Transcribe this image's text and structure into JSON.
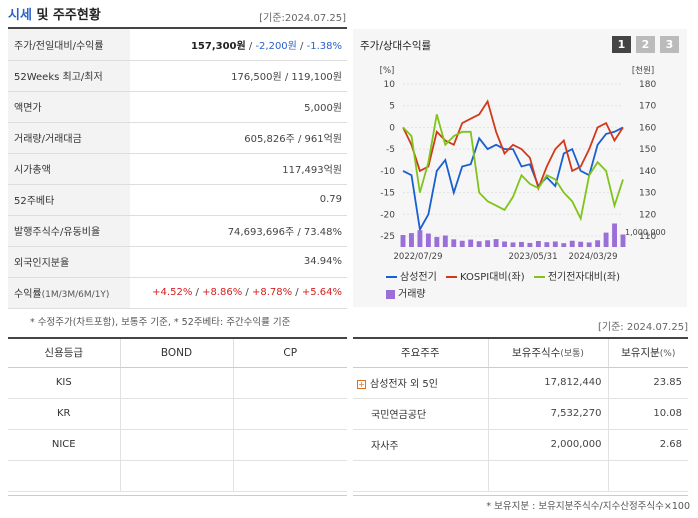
{
  "header": {
    "title_part1": "시세",
    "title_part2": " 및 주주현황",
    "base_date": "[기준:2024.07.25]"
  },
  "info_rows": {
    "price": {
      "label": "주가/전일대비/수익률",
      "price": "157,300원",
      "sep1": " / ",
      "change": "-2,200원",
      "sep2": " / ",
      "rate": "-1.38%"
    },
    "weeks52": {
      "label": "52Weeks 최고/최저",
      "value": "176,500원 / 119,100원"
    },
    "par": {
      "label": "액면가",
      "value": "5,000원"
    },
    "volume": {
      "label": "거래량/거래대금",
      "value": "605,826주 / 961억원"
    },
    "market_cap": {
      "label": "시가총액",
      "value": "117,493억원"
    },
    "beta": {
      "label": "52주베타",
      "value": "0.79"
    },
    "shares": {
      "label": "발행주식수/유동비율",
      "value": "74,693,696주 / 73.48%"
    },
    "foreign": {
      "label": "외국인지분율",
      "value": "34.94%"
    },
    "returns": {
      "label": "수익률",
      "label_sub": "(1M/3M/6M/1Y)",
      "r1": "+4.52%",
      "r2": "+8.86%",
      "r3": "+8.78%",
      "r4": "+5.64%",
      "sep": " / "
    }
  },
  "note1": "* 수정주가(차트포함), 보통주 기준, * 52주베타: 주간수익률 기준",
  "chart": {
    "title": "주가/상대수익률",
    "tabs": [
      "1",
      "2",
      "3"
    ],
    "active_tab": "1",
    "left_unit": "[%]",
    "right_unit": "[천원]",
    "volume_label": "1,000,000",
    "legend": [
      "삼성전기",
      "KOSPI대비(좌)",
      "전기전자대비(좌)",
      "거래량"
    ],
    "colors": {
      "price": "#1a5fd0",
      "kospi": "#d03a1a",
      "sector": "#7fc41a",
      "volume": "#9a6fd8"
    }
  },
  "chart_data": {
    "type": "line",
    "x_ticks": [
      "2022/07/29",
      "2023/05/31",
      "2024/03/29"
    ],
    "left_axis": {
      "ticks": [
        10,
        5,
        0,
        -5,
        -10,
        -15,
        -20,
        -25
      ],
      "range": [
        -25,
        10
      ]
    },
    "right_axis": {
      "ticks": [
        180,
        170,
        160,
        150,
        140,
        130,
        120,
        110
      ],
      "range": [
        110,
        180
      ]
    },
    "volume_axis": {
      "max": 1000000
    },
    "series": [
      {
        "name": "삼성전기",
        "axis": "right",
        "values": [
          140,
          138,
          113,
          120,
          140,
          145,
          130,
          142,
          143,
          155,
          150,
          152,
          150,
          150,
          142,
          143,
          133,
          137,
          133,
          148,
          150,
          140,
          138,
          152,
          157,
          158,
          160
        ]
      },
      {
        "name": "KOSPI대비(좌)",
        "axis": "left",
        "values": [
          0,
          -4,
          -10,
          -9,
          -1,
          -3,
          -4,
          1,
          2,
          3,
          6,
          -1,
          -6,
          -4,
          -5,
          -7,
          -14,
          -9,
          -5,
          -3,
          -10,
          -9,
          -5,
          0,
          1,
          -3,
          0
        ]
      },
      {
        "name": "전기전자대비(좌)",
        "axis": "left",
        "values": [
          0,
          -2,
          -15,
          -8,
          3,
          -4,
          -2,
          -1,
          -1,
          -15,
          -17,
          -18,
          -19,
          -16,
          -11,
          -13,
          -14,
          -11,
          -12,
          -15,
          -17,
          -21,
          -11,
          -8,
          -10,
          -18,
          -12
        ]
      }
    ],
    "volume": [
      500000,
      580000,
      700000,
      560000,
      420000,
      480000,
      320000,
      260000,
      310000,
      240000,
      280000,
      330000,
      230000,
      190000,
      210000,
      170000,
      250000,
      200000,
      230000,
      160000,
      260000,
      220000,
      190000,
      280000,
      600000,
      980000,
      520000
    ]
  },
  "credit": {
    "headers": [
      "신용등급",
      "BOND",
      "CP"
    ],
    "rows": [
      {
        "agency": "KIS",
        "bond": "",
        "cp": ""
      },
      {
        "agency": "KR",
        "bond": "",
        "cp": ""
      },
      {
        "agency": "NICE",
        "bond": "",
        "cp": ""
      }
    ]
  },
  "holders": {
    "base_date": "[기준: 2024.07.25]",
    "headers": [
      "주요주주",
      "보유주식수",
      "(보통)",
      "보유지분",
      "(%)"
    ],
    "rows": [
      {
        "name": "삼성전자 외 5인",
        "shares": "17,812,440",
        "pct": "23.85"
      },
      {
        "name": "국민연금공단",
        "shares": "7,532,270",
        "pct": "10.08"
      },
      {
        "name": "자사주",
        "shares": "2,000,000",
        "pct": "2.68"
      }
    ]
  },
  "note2": "* 보유지분 : 보유지분주식수/지수산정주식수×100"
}
